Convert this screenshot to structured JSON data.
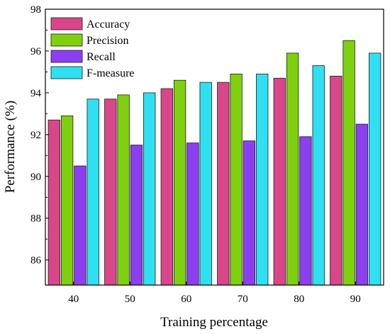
{
  "chart_data": {
    "type": "bar",
    "title": "",
    "xlabel": "Training percentage",
    "ylabel": "Performance (%)",
    "categories": [
      "40",
      "50",
      "60",
      "70",
      "80",
      "90"
    ],
    "ylim": [
      84.8,
      98
    ],
    "yticks": [
      86,
      88,
      90,
      92,
      94,
      96,
      98
    ],
    "grid": false,
    "legend_position": "top-left",
    "series": [
      {
        "name": "Accuracy",
        "color": "#d9478a",
        "values": [
          92.7,
          93.7,
          94.2,
          94.5,
          94.7,
          94.8
        ]
      },
      {
        "name": "Precision",
        "color": "#7fd10f",
        "values": [
          92.9,
          93.9,
          94.6,
          94.9,
          95.9,
          96.5
        ]
      },
      {
        "name": "Recall",
        "color": "#8c3ff0",
        "values": [
          90.5,
          91.5,
          91.6,
          91.7,
          91.9,
          92.5
        ]
      },
      {
        "name": "F-measure",
        "color": "#2fe0f2",
        "values": [
          93.7,
          94.0,
          94.5,
          94.9,
          95.3,
          95.9
        ]
      }
    ]
  }
}
